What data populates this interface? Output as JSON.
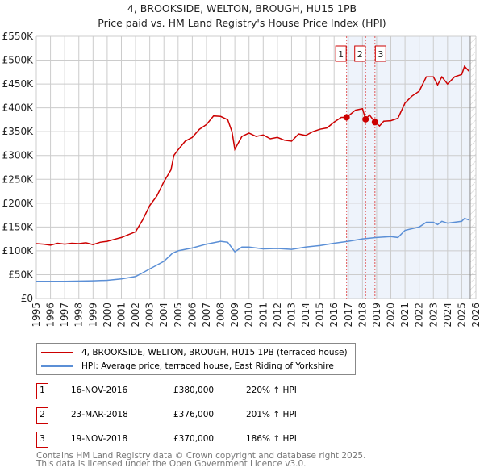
{
  "title_line1": "4, BROOKSIDE, WELTON, BROUGH, HU15 1PB",
  "title_line2": "Price paid vs. HM Land Registry's House Price Index (HPI)",
  "colors": {
    "price": "#cc0000",
    "hpi": "#5b8fd6",
    "shade": "#eef3fb",
    "grid": "#cccccc"
  },
  "chart_data": {
    "type": "line",
    "xlim": [
      1995,
      2026
    ],
    "ylim": [
      0,
      550000
    ],
    "x_ticks": [
      "1995",
      "1996",
      "1997",
      "1998",
      "1999",
      "2000",
      "2001",
      "2002",
      "2003",
      "2004",
      "2005",
      "2006",
      "2007",
      "2008",
      "2009",
      "2010",
      "2011",
      "2012",
      "2013",
      "2014",
      "2015",
      "2016",
      "2017",
      "2018",
      "2019",
      "2020",
      "2021",
      "2022",
      "2023",
      "2024",
      "2025",
      "2026"
    ],
    "y_ticks": [
      {
        "v": 0,
        "label": "£0"
      },
      {
        "v": 50000,
        "label": "£50K"
      },
      {
        "v": 100000,
        "label": "£100K"
      },
      {
        "v": 150000,
        "label": "£150K"
      },
      {
        "v": 200000,
        "label": "£200K"
      },
      {
        "v": 250000,
        "label": "£250K"
      },
      {
        "v": 300000,
        "label": "£300K"
      },
      {
        "v": 350000,
        "label": "£350K"
      },
      {
        "v": 400000,
        "label": "£400K"
      },
      {
        "v": 450000,
        "label": "£450K"
      },
      {
        "v": 500000,
        "label": "£500K"
      },
      {
        "v": 550000,
        "label": "£550K"
      }
    ],
    "grid": true,
    "shaded_range": [
      2016.88,
      2025.6
    ],
    "series": [
      {
        "name": "4, BROOKSIDE, WELTON, BROUGH, HU15 1PB (terraced house)",
        "color": "#cc0000",
        "x": [
          1995,
          1995.5,
          1996,
          1996.5,
          1997,
          1997.5,
          1998,
          1998.5,
          1999,
          1999.5,
          2000,
          2000.5,
          2001,
          2001.5,
          2002,
          2002.5,
          2003,
          2003.5,
          2004,
          2004.5,
          2004.7,
          2005,
          2005.5,
          2006,
          2006.5,
          2007,
          2007.5,
          2008,
          2008.5,
          2008.8,
          2009,
          2009.5,
          2010,
          2010.5,
          2011,
          2011.5,
          2012,
          2012.5,
          2013,
          2013.5,
          2014,
          2014.5,
          2015,
          2015.5,
          2016,
          2016.5,
          2016.88,
          2017.5,
          2018,
          2018.22,
          2018.5,
          2018.88,
          2019.2,
          2019.5,
          2020,
          2020.5,
          2021,
          2021.5,
          2022,
          2022.5,
          2023,
          2023.3,
          2023.6,
          2024,
          2024.5,
          2025,
          2025.2,
          2025.5
        ],
        "y": [
          115000,
          114000,
          112000,
          116000,
          114000,
          116000,
          115000,
          117000,
          113000,
          118000,
          120000,
          124000,
          128000,
          134000,
          140000,
          165000,
          195000,
          215000,
          245000,
          270000,
          300000,
          312000,
          330000,
          338000,
          355000,
          365000,
          383000,
          382000,
          375000,
          350000,
          313000,
          340000,
          347000,
          340000,
          343000,
          335000,
          338000,
          332000,
          330000,
          345000,
          342000,
          350000,
          355000,
          358000,
          370000,
          380000,
          380000,
          395000,
          398000,
          376000,
          385000,
          370000,
          362000,
          372000,
          373000,
          378000,
          410000,
          425000,
          435000,
          465000,
          465000,
          448000,
          465000,
          450000,
          465000,
          470000,
          487000,
          477000
        ]
      },
      {
        "name": "HPI: Average price, terraced house, East Riding of Yorkshire",
        "color": "#5b8fd6",
        "x": [
          1995,
          1997,
          1999,
          2000,
          2001,
          2002,
          2002.5,
          2003,
          2004,
          2004.6,
          2005,
          2006,
          2007,
          2008,
          2008.5,
          2009,
          2009.5,
          2010,
          2011,
          2012,
          2013,
          2014,
          2015,
          2016,
          2017,
          2018,
          2019,
          2020,
          2020.5,
          2021,
          2022,
          2022.5,
          2023,
          2023.3,
          2023.6,
          2024,
          2025,
          2025.2,
          2025.5
        ],
        "y": [
          36000,
          36000,
          37000,
          38000,
          41000,
          46000,
          54000,
          62000,
          78000,
          95000,
          100000,
          106000,
          114000,
          120000,
          118000,
          98000,
          108000,
          108000,
          104000,
          105000,
          103000,
          108000,
          111000,
          116000,
          120000,
          125000,
          128000,
          130000,
          128000,
          143000,
          150000,
          160000,
          160000,
          155000,
          162000,
          158000,
          162000,
          168000,
          165000
        ]
      }
    ],
    "sales": [
      {
        "id": "1",
        "x": 2016.88,
        "price": 380000,
        "date": "16-NOV-2016",
        "price_label": "£380,000",
        "hpi_label": "220% ↑ HPI"
      },
      {
        "id": "2",
        "x": 2018.22,
        "price": 376000,
        "date": "23-MAR-2018",
        "price_label": "£376,000",
        "hpi_label": "201% ↑ HPI"
      },
      {
        "id": "3",
        "x": 2018.88,
        "price": 370000,
        "date": "19-NOV-2018",
        "price_label": "£370,000",
        "hpi_label": "186% ↑ HPI"
      }
    ]
  },
  "legend": {
    "price_label": "4, BROOKSIDE, WELTON, BROUGH, HU15 1PB (terraced house)",
    "hpi_label": "HPI: Average price, terraced house, East Riding of Yorkshire"
  },
  "footer": {
    "line1": "Contains HM Land Registry data © Crown copyright and database right 2025.",
    "line2": "This data is licensed under the Open Government Licence v3.0."
  }
}
